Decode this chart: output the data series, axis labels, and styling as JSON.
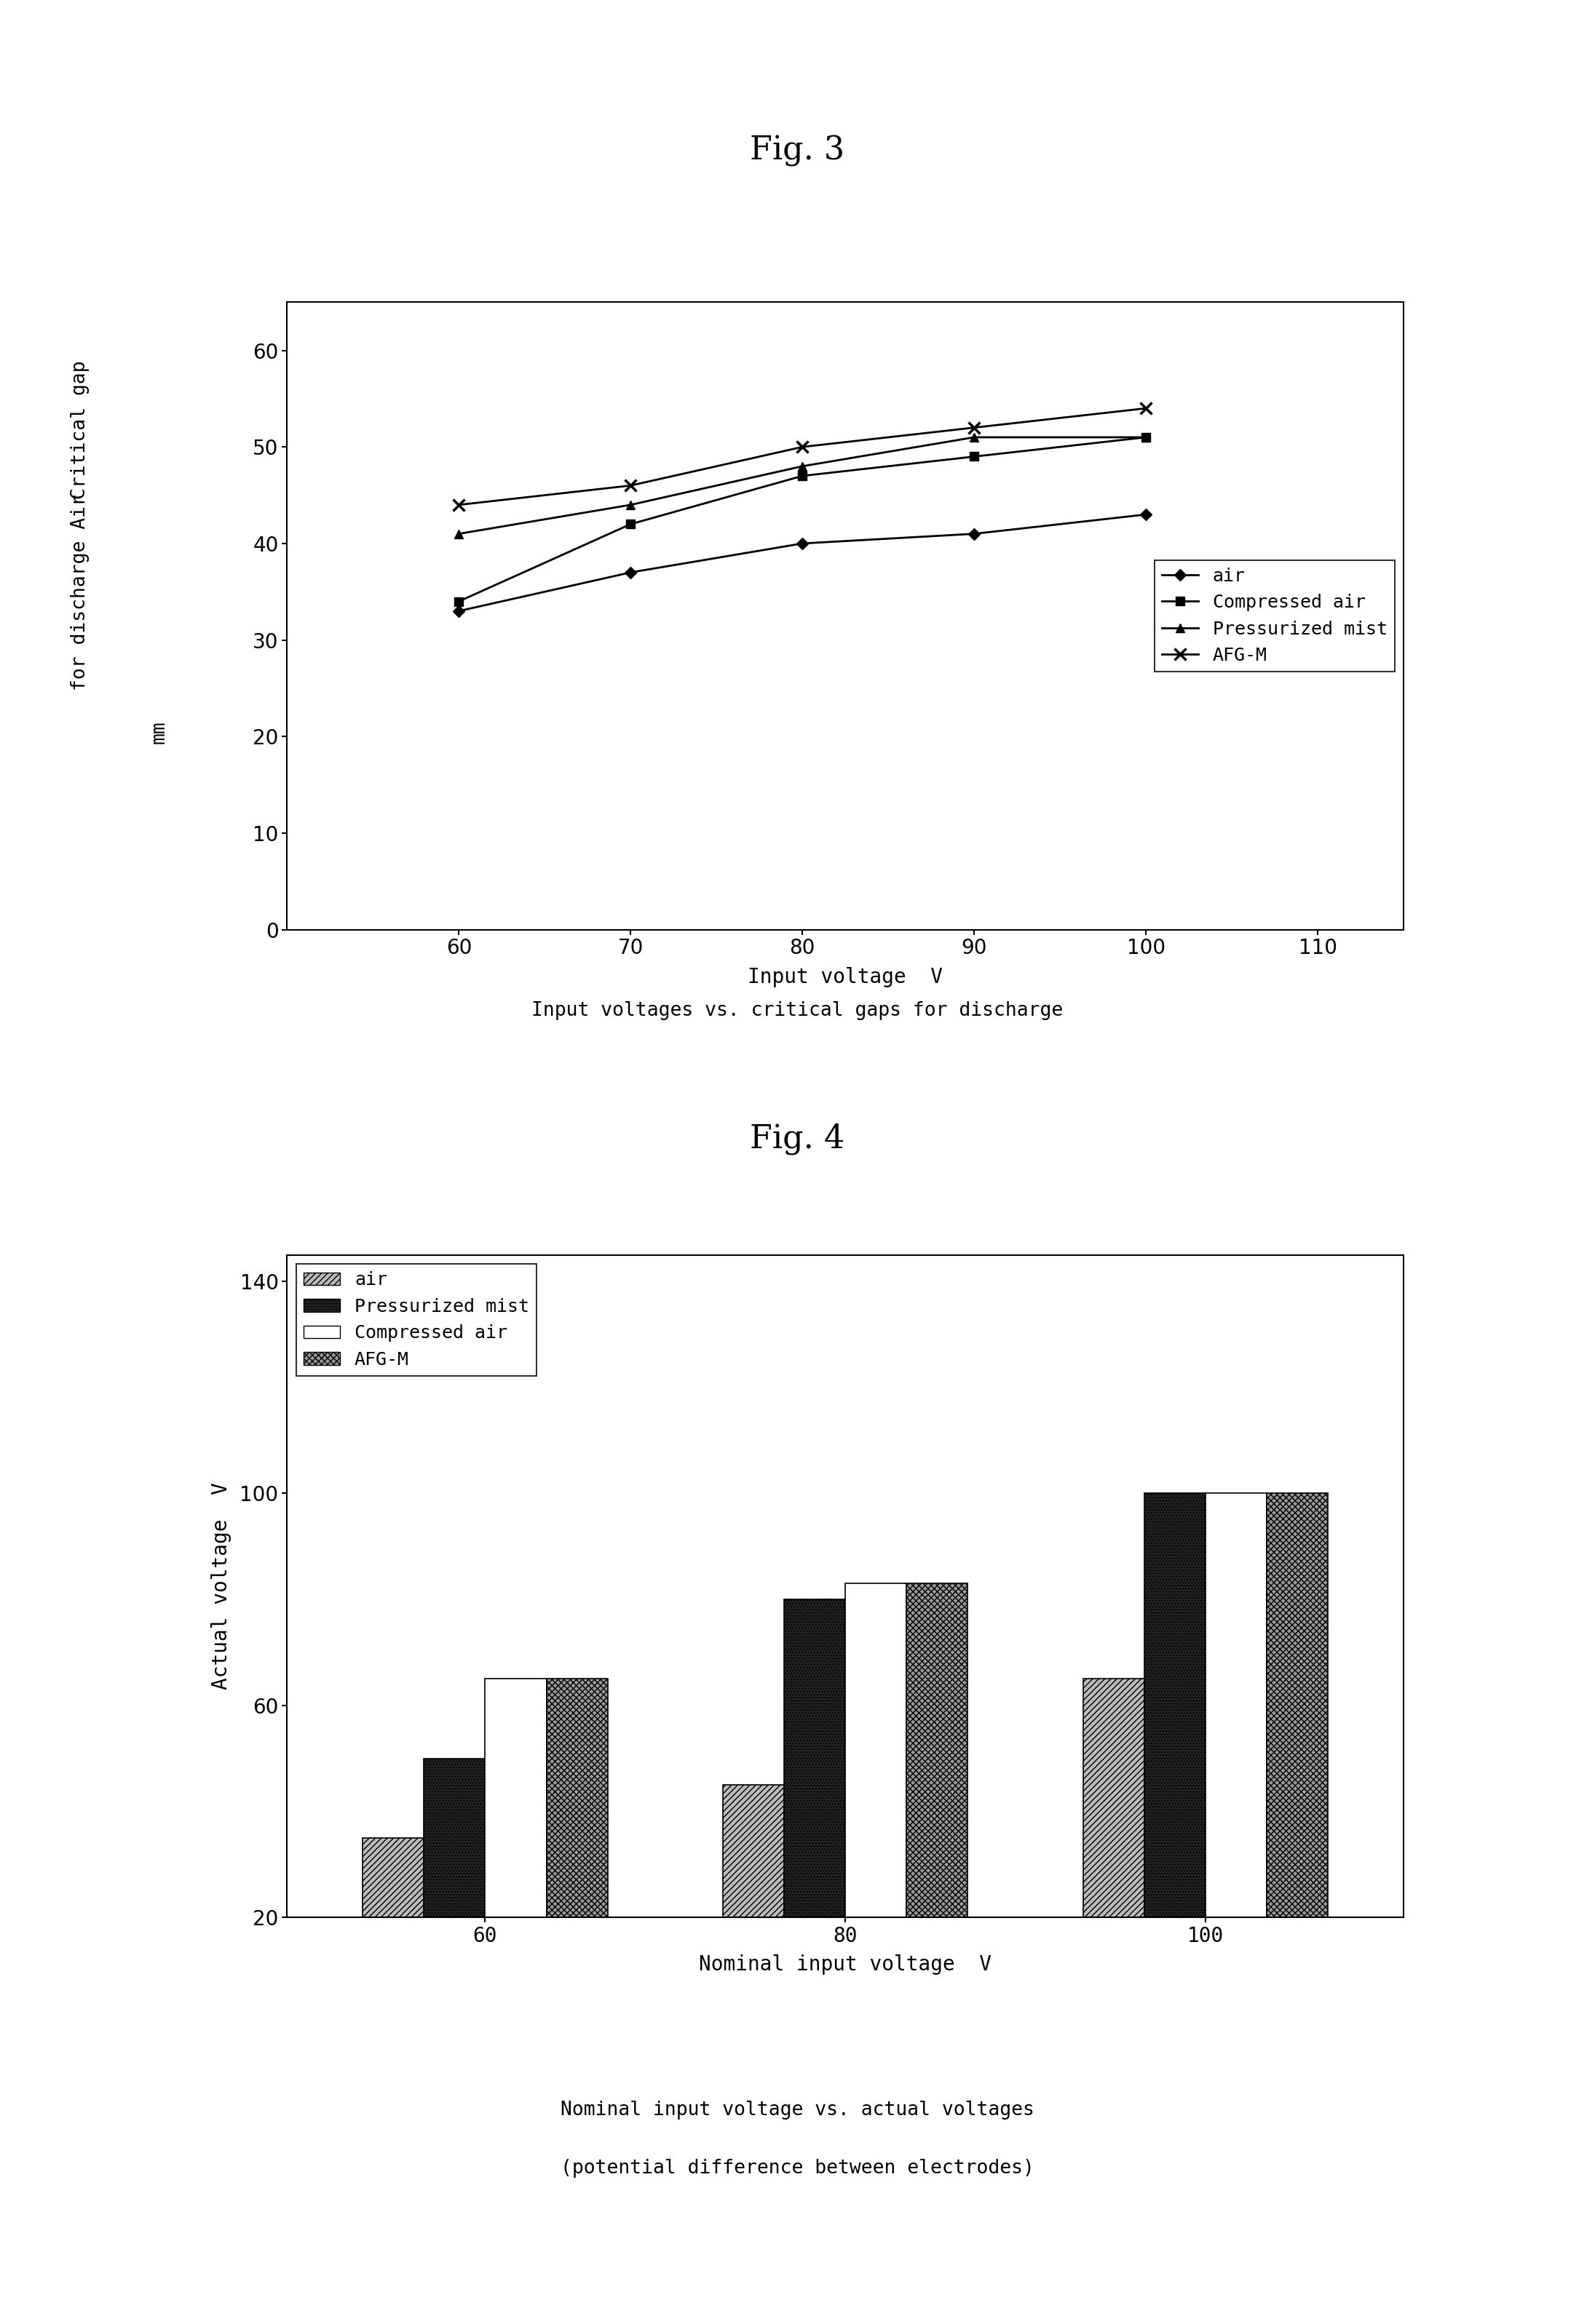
{
  "fig3_title": "Fig. 3",
  "fig3_xlabel": "Input voltage  V",
  "fig3_caption": "Input voltages vs. critical gaps for discharge",
  "fig3_xlim": [
    50,
    115
  ],
  "fig3_ylim": [
    0,
    65
  ],
  "fig3_xticks": [
    60,
    70,
    80,
    90,
    100,
    110
  ],
  "fig3_yticks": [
    0,
    10,
    20,
    30,
    40,
    50,
    60
  ],
  "fig3_x": [
    60,
    70,
    80,
    90,
    100
  ],
  "fig3_air": [
    33,
    37,
    40,
    41,
    43
  ],
  "fig3_compressed_air": [
    34,
    42,
    47,
    49,
    51
  ],
  "fig3_pressurized_mist": [
    41,
    44,
    48,
    51,
    51
  ],
  "fig3_afgm": [
    44,
    46,
    50,
    52,
    54
  ],
  "fig3_legend": [
    "air",
    "Compressed air",
    "Pressurized mist",
    "AFG-M"
  ],
  "fig4_title": "Fig. 4",
  "fig4_xlabel": "Nominal input voltage  V",
  "fig4_ylabel": "Actual voltage  V",
  "fig4_caption1": "Nominal input voltage vs. actual voltages",
  "fig4_caption2": "(potential difference between electrodes)",
  "fig4_ylim": [
    20,
    145
  ],
  "fig4_yticks": [
    20,
    60,
    100,
    140
  ],
  "fig4_categories": [
    "60",
    "80",
    "100"
  ],
  "fig4_air": [
    35,
    45,
    65
  ],
  "fig4_pressurized_mist": [
    50,
    80,
    100
  ],
  "fig4_compressed_air": [
    65,
    83,
    100
  ],
  "fig4_afgm": [
    65,
    83,
    100
  ],
  "fig4_legend": [
    "air",
    "Pressurized mist",
    "Compressed air",
    "AFG-M"
  ],
  "background_color": "#ffffff",
  "title_fontsize": 32,
  "axis_label_fontsize": 20,
  "tick_fontsize": 20,
  "legend_fontsize": 18,
  "caption_fontsize": 19
}
